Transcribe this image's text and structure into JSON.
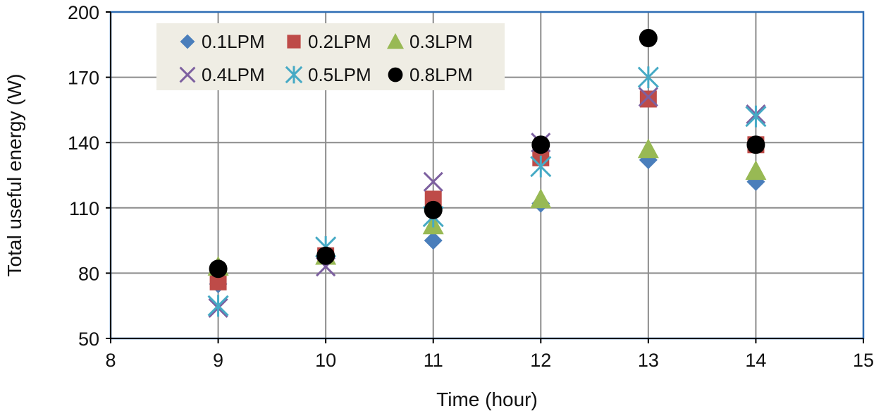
{
  "chart_data": {
    "type": "scatter",
    "xlabel": "Time (hour)",
    "ylabel": "Total useful energy (W)",
    "xlim": [
      8,
      15
    ],
    "ylim": [
      50,
      200
    ],
    "x_ticks": [
      "8",
      "9",
      "10",
      "11",
      "12",
      "13",
      "14",
      "15"
    ],
    "y_ticks": [
      "50",
      "80",
      "110",
      "140",
      "170",
      "200"
    ],
    "grid": true,
    "legend_position": "top-left",
    "series": [
      {
        "name": "0.1LPM",
        "marker": "diamond",
        "color": "#4A7EBB",
        "x": [
          9,
          10,
          11,
          12,
          13,
          14
        ],
        "y": [
          75,
          87,
          95,
          112,
          132,
          122
        ]
      },
      {
        "name": "0.2LPM",
        "marker": "square",
        "color": "#BE4B48",
        "x": [
          9,
          10,
          11,
          12,
          13,
          14
        ],
        "y": [
          76,
          88,
          114,
          133,
          160,
          139
        ]
      },
      {
        "name": "0.3LPM",
        "marker": "triangle",
        "color": "#98B954",
        "x": [
          9,
          10,
          11,
          12,
          13,
          14
        ],
        "y": [
          83,
          88,
          102,
          114,
          137,
          127
        ]
      },
      {
        "name": "0.4LPM",
        "marker": "x",
        "color": "#7D60A0",
        "x": [
          9,
          10,
          11,
          12,
          13,
          14
        ],
        "y": [
          64,
          83,
          122,
          140,
          161,
          153
        ]
      },
      {
        "name": "0.5LPM",
        "marker": "star",
        "color": "#46AAC5",
        "x": [
          9,
          10,
          11,
          12,
          13,
          14
        ],
        "y": [
          65,
          92,
          106,
          129,
          170,
          152
        ]
      },
      {
        "name": "0.8LPM",
        "marker": "circle",
        "color": "#000000",
        "x": [
          9,
          10,
          11,
          12,
          13,
          14
        ],
        "y": [
          82,
          88,
          109,
          139,
          188,
          139
        ]
      }
    ]
  }
}
